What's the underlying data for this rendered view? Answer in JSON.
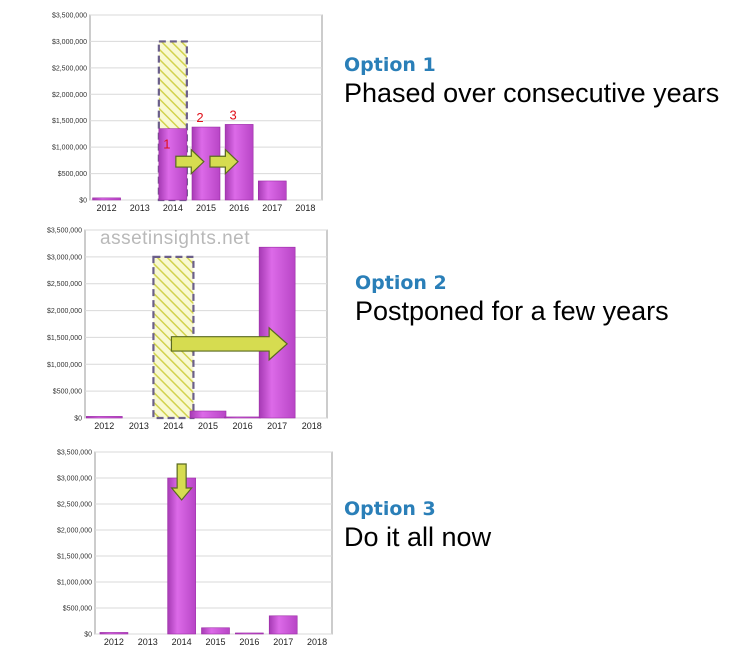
{
  "watermark": "assetinsights.net",
  "colors": {
    "bar": "#cc55dd",
    "bar_dark": "#9b2aa6",
    "hatch": "#d2d24e",
    "hatch_bg": "#f9f9d2",
    "dash": "#6b5f8a",
    "arrow": "#d6dc50",
    "arrow_dark": "#5a6a20",
    "option": "#2a7fb8",
    "number": "#e0101a"
  },
  "chart_data": [
    {
      "type": "bar",
      "categories": [
        "2012",
        "2013",
        "2014",
        "2015",
        "2016",
        "2017",
        "2018"
      ],
      "values": [
        40000,
        0,
        1350000,
        1380000,
        1430000,
        360000,
        0
      ],
      "ylim": [
        0,
        3500000
      ],
      "yticks": [
        "$0",
        "$500,000",
        "$1,000,000",
        "$1,500,000",
        "$2,000,000",
        "$2,500,000",
        "$3,000,000",
        "$3,500,000"
      ],
      "planned": {
        "category": "2014",
        "value": 3000000
      },
      "phase_labels": [
        "1",
        "2",
        "3"
      ],
      "option_label": "Option 1",
      "description": "Phased over consecutive years"
    },
    {
      "type": "bar",
      "categories": [
        "2012",
        "2013",
        "2014",
        "2015",
        "2016",
        "2017",
        "2018"
      ],
      "values": [
        30000,
        0,
        0,
        130000,
        20000,
        3180000,
        0
      ],
      "ylim": [
        0,
        3500000
      ],
      "yticks": [
        "$0",
        "$500,000",
        "$1,000,000",
        "$1,500,000",
        "$2,000,000",
        "$2,500,000",
        "$3,000,000",
        "$3,500,000"
      ],
      "planned": {
        "category": "2014",
        "value": 3000000
      },
      "option_label": "Option 2",
      "description": "Postponed for a few years"
    },
    {
      "type": "bar",
      "categories": [
        "2012",
        "2013",
        "2014",
        "2015",
        "2016",
        "2017",
        "2018"
      ],
      "values": [
        30000,
        0,
        3000000,
        120000,
        20000,
        350000,
        0
      ],
      "ylim": [
        0,
        3500000
      ],
      "yticks": [
        "$0",
        "$500,000",
        "$1,000,000",
        "$1,500,000",
        "$2,000,000",
        "$2,500,000",
        "$3,000,000",
        "$3,500,000"
      ],
      "option_label": "Option 3",
      "description": "Do it all now"
    }
  ]
}
